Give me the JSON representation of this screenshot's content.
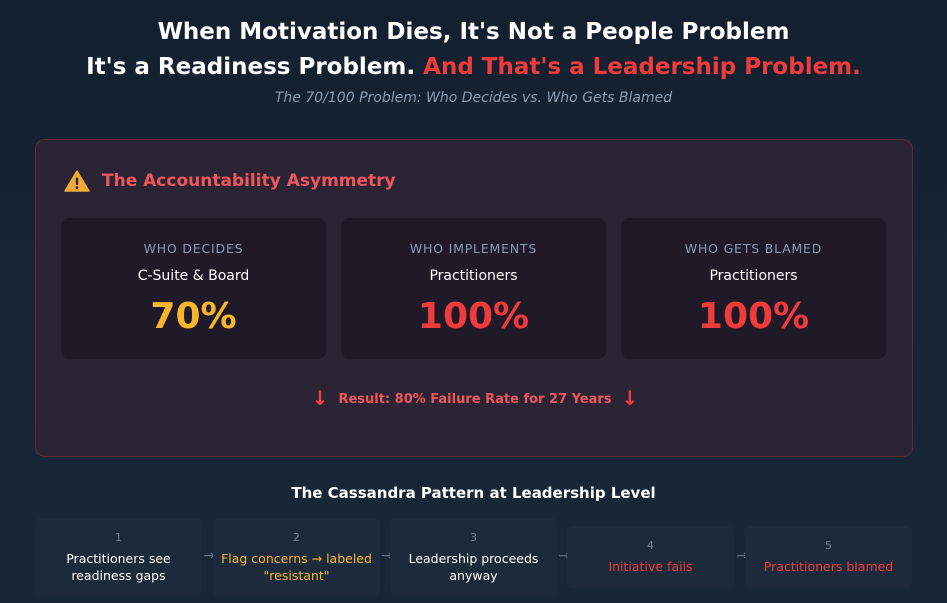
{
  "header": {
    "line1": "When Motivation Dies, It's Not a People Problem",
    "line2_white": "It's a Readiness Problem.",
    "line2_red": "And That's a Leadership Problem.",
    "subtitle": "The 70/100 Problem: Who Decides vs. Who Gets Blamed"
  },
  "panel": {
    "icon": "warning-icon",
    "title": "The Accountability Asymmetry",
    "cards": [
      {
        "label": "WHO DECIDES",
        "who": "C-Suite & Board",
        "value": "70%",
        "color": "#f8b72a"
      },
      {
        "label": "WHO IMPLEMENTS",
        "who": "Practitioners",
        "value": "100%",
        "color": "#ef3b3b"
      },
      {
        "label": "WHO GETS BLAMED",
        "who": "Practitioners",
        "value": "100%",
        "color": "#ef3b3b"
      }
    ],
    "result_arrow": "↓",
    "result": "Result: 80% Failure Rate for 27 Years"
  },
  "pattern": {
    "title": "The Cassandra Pattern at Leadership Level",
    "arrow": "→",
    "steps": [
      {
        "num": "1",
        "text": "Practitioners see readiness gaps"
      },
      {
        "num": "2",
        "text": "Flag concerns → labeled \"resistant\""
      },
      {
        "num": "3",
        "text": "Leadership proceeds anyway"
      },
      {
        "num": "4",
        "text": "Initiative fails"
      },
      {
        "num": "5",
        "text": "Practitioners blamed"
      }
    ]
  }
}
